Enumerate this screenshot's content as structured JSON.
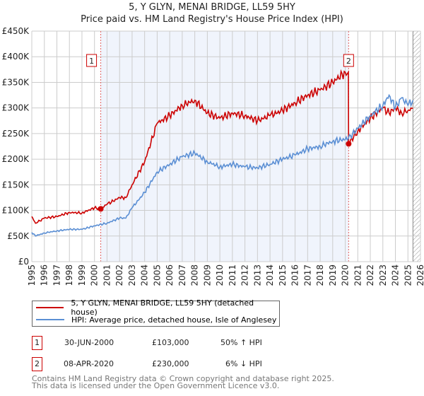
{
  "title": "5, Y GLYN, MENAI BRIDGE, LL59 5HY",
  "subtitle": "Price paid vs. HM Land Registry's House Price Index (HPI)",
  "chart_data": {
    "type": "line",
    "xlim": [
      1995,
      2026
    ],
    "ylim": [
      0,
      450000
    ],
    "y_ticks": [
      0,
      50000,
      100000,
      150000,
      200000,
      250000,
      300000,
      350000,
      400000,
      450000
    ],
    "y_tick_labels": [
      "£0",
      "£50K",
      "£100K",
      "£150K",
      "£200K",
      "£250K",
      "£300K",
      "£350K",
      "£400K",
      "£450K"
    ],
    "x_ticks": [
      "1995",
      "1996",
      "1997",
      "1998",
      "1999",
      "2000",
      "2001",
      "2002",
      "2003",
      "2004",
      "2005",
      "2006",
      "2007",
      "2008",
      "2009",
      "2010",
      "2011",
      "2012",
      "2013",
      "2014",
      "2015",
      "2016",
      "2017",
      "2018",
      "2019",
      "2020",
      "2021",
      "2022",
      "2023",
      "2024",
      "2025",
      "2026"
    ],
    "grid": true,
    "shaded_range": [
      2000.5,
      2020.27
    ],
    "hatched_from": 2025.4,
    "series": [
      {
        "name": "5, Y GLYN, MENAI BRIDGE, LL59 5HY (detached house)",
        "color": "#cc0000",
        "x": [
          1995,
          1995.3,
          1996,
          1997,
          1998,
          1999,
          2000,
          2000.5,
          2001,
          2002,
          2002.5,
          2003,
          2004,
          2005,
          2006,
          2007,
          2008,
          2009,
          2010,
          2011,
          2012,
          2013,
          2014,
          2015,
          2016,
          2017,
          2018,
          2019,
          2020,
          2020.25,
          2020.27,
          2021,
          2022,
          2023,
          2023.5,
          2024,
          2024.5,
          2025,
          2025.4
        ],
        "y": [
          88000,
          75000,
          85000,
          88000,
          96000,
          95000,
          105000,
          103000,
          112000,
          125000,
          125000,
          150000,
          195000,
          270000,
          285000,
          305000,
          315000,
          290000,
          280000,
          290000,
          285000,
          275000,
          285000,
          295000,
          310000,
          325000,
          335000,
          350000,
          370000,
          370000,
          230000,
          255000,
          280000,
          300000,
          290000,
          300000,
          290000,
          295000,
          300000
        ]
      },
      {
        "name": "HPI: Average price, detached house, Isle of Anglesey",
        "color": "#5b8fd4",
        "x": [
          1995,
          1995.3,
          1996,
          1997,
          1998,
          1999,
          2000,
          2001,
          2002,
          2002.5,
          2003,
          2004,
          2005,
          2006,
          2007,
          2008,
          2009,
          2010,
          2011,
          2012,
          2013,
          2014,
          2015,
          2016,
          2017,
          2018,
          2019,
          2020.25,
          2021,
          2022,
          2023,
          2023.5,
          2024,
          2024.5,
          2025,
          2025.4
        ],
        "y": [
          57000,
          50000,
          56000,
          60000,
          63000,
          63000,
          70000,
          75000,
          85000,
          85000,
          105000,
          135000,
          175000,
          190000,
          205000,
          212000,
          195000,
          185000,
          190000,
          185000,
          183000,
          190000,
          200000,
          208000,
          220000,
          225000,
          235000,
          240000,
          260000,
          285000,
          305000,
          325000,
          300000,
          320000,
          305000,
          315000
        ]
      }
    ],
    "sales": [
      {
        "label": "1",
        "x": 2000.5,
        "y": 103000
      },
      {
        "label": "2",
        "x": 2020.27,
        "y": 230000
      }
    ]
  },
  "legend": {
    "property": "5, Y GLYN, MENAI BRIDGE, LL59 5HY (detached house)",
    "hpi": "HPI: Average price, detached house, Isle of Anglesey"
  },
  "transactions": [
    {
      "num": "1",
      "date": "30-JUN-2000",
      "price": "£103,000",
      "hpi": "50% ↑ HPI"
    },
    {
      "num": "2",
      "date": "08-APR-2020",
      "price": "£230,000",
      "hpi": "6% ↓ HPI"
    }
  ],
  "footer": {
    "line1": "Contains HM Land Registry data © Crown copyright and database right 2025.",
    "line2": "This data is licensed under the Open Government Licence v3.0."
  }
}
